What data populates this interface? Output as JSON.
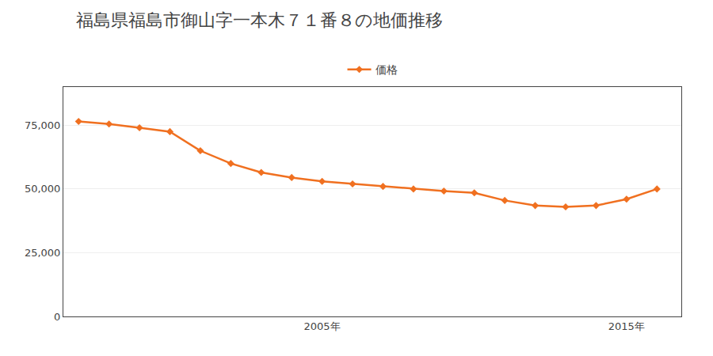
{
  "chart_data": {
    "type": "line",
    "title": "福島県福島市御山字一本木７１番８の地価推移",
    "x": [
      1997,
      1998,
      1999,
      2000,
      2001,
      2002,
      2003,
      2004,
      2005,
      2006,
      2007,
      2008,
      2009,
      2010,
      2011,
      2012,
      2013,
      2014,
      2015,
      2016
    ],
    "series": [
      {
        "name": "価格",
        "color": "#f07020",
        "marker": "diamond",
        "values": [
          76500,
          75500,
          74000,
          72500,
          65000,
          60000,
          56500,
          54500,
          53000,
          52000,
          51000,
          50000,
          49200,
          48500,
          45500,
          43500,
          43000,
          43500,
          46000,
          50000
        ]
      }
    ],
    "xlim": [
      1996.5,
      2016.8
    ],
    "xticks": [
      {
        "value": 2005,
        "label": "2005年"
      },
      {
        "value": 2015,
        "label": "2015年"
      }
    ],
    "ylim": [
      0,
      90000
    ],
    "yticks": [
      0,
      {
        "value": 25000,
        "label": "25,000"
      },
      {
        "value": 50000,
        "label": "50,000"
      },
      {
        "value": 75000,
        "label": "75,000"
      }
    ],
    "grid": "y",
    "legend": "top"
  }
}
